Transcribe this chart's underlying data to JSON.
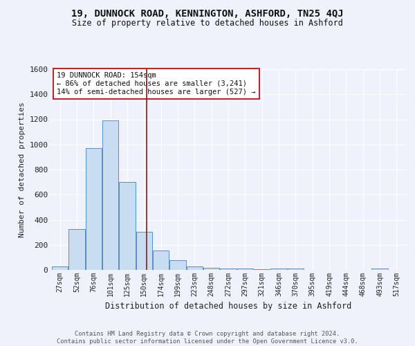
{
  "title": "19, DUNNOCK ROAD, KENNINGTON, ASHFORD, TN25 4QJ",
  "subtitle": "Size of property relative to detached houses in Ashford",
  "xlabel": "Distribution of detached houses by size in Ashford",
  "ylabel": "Number of detached properties",
  "footnote1": "Contains HM Land Registry data © Crown copyright and database right 2024.",
  "footnote2": "Contains public sector information licensed under the Open Government Licence v3.0.",
  "bar_labels": [
    "27sqm",
    "52sqm",
    "76sqm",
    "101sqm",
    "125sqm",
    "150sqm",
    "174sqm",
    "199sqm",
    "223sqm",
    "248sqm",
    "272sqm",
    "297sqm",
    "321sqm",
    "346sqm",
    "370sqm",
    "395sqm",
    "419sqm",
    "444sqm",
    "468sqm",
    "493sqm",
    "517sqm"
  ],
  "bar_values": [
    25,
    325,
    970,
    1190,
    700,
    305,
    155,
    75,
    28,
    18,
    12,
    10,
    8,
    10,
    12,
    0,
    0,
    0,
    0,
    12,
    0
  ],
  "bar_color": "#c9ddf2",
  "bar_edge_color": "#5b8ec4",
  "background_color": "#edf2fb",
  "grid_color": "#ffffff",
  "property_line_color": "#8b1a1a",
  "annotation_line1": "19 DUNNOCK ROAD: 154sqm",
  "annotation_line2": "← 86% of detached houses are smaller (3,241)",
  "annotation_line3": "14% of semi-detached houses are larger (527) →",
  "ylim": [
    0,
    1600
  ],
  "yticks": [
    0,
    200,
    400,
    600,
    800,
    1000,
    1200,
    1400,
    1600
  ],
  "property_size": 154
}
